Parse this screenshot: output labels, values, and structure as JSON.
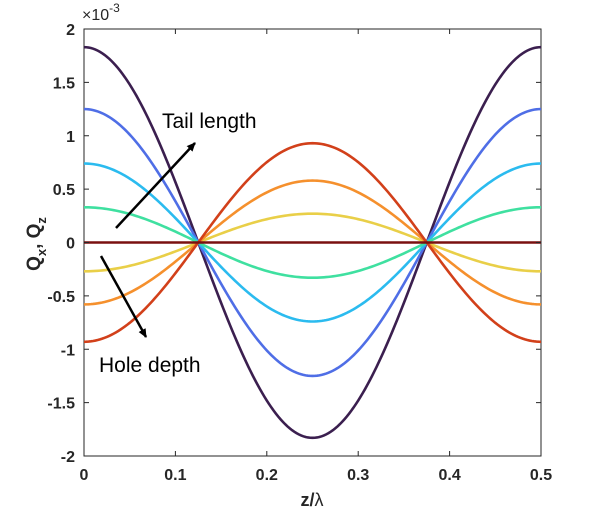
{
  "chart_data": {
    "type": "line",
    "xlabel_parts": {
      "base": "z/",
      "greek": "λ"
    },
    "ylabel_parts": {
      "q1": "Q",
      "s1": "x",
      "sep": ", ",
      "q2": "Q",
      "s2": "z"
    },
    "y_exponent": {
      "base": "×10",
      "power": "-3"
    },
    "xlim": [
      0,
      0.5
    ],
    "ylim": [
      -2,
      2
    ],
    "x_ticks": [
      "0",
      "0.1",
      "0.2",
      "0.3",
      "0.4",
      "0.5"
    ],
    "y_ticks": [
      "2",
      "1.5",
      "1",
      "0.5",
      "0",
      "-0.5",
      "-1",
      "-1.5",
      "-2"
    ],
    "grid": false,
    "annotations": [
      {
        "text": "Tail length"
      },
      {
        "text": "Hole depth"
      }
    ],
    "series": [
      {
        "shape": "cos(4πx/λ)",
        "amplitude": 1.83,
        "color": "#3b1f4f"
      },
      {
        "shape": "cos(4πx/λ)",
        "amplitude": 1.25,
        "color": "#4f6ee6"
      },
      {
        "shape": "cos(4πx/λ)",
        "amplitude": 0.74,
        "color": "#2bbbef"
      },
      {
        "shape": "cos(4πx/λ)",
        "amplitude": 0.33,
        "color": "#3fe0a0"
      },
      {
        "shape": "cos(4πx/λ)",
        "amplitude": -0.27,
        "color": "#e9cf48"
      },
      {
        "shape": "cos(4πx/λ)",
        "amplitude": -0.58,
        "color": "#f5902d"
      },
      {
        "shape": "cos(4πx/λ)",
        "amplitude": -0.93,
        "color": "#d2401a"
      },
      {
        "shape": "constant",
        "amplitude": 0,
        "color": "#7a1010"
      }
    ]
  }
}
